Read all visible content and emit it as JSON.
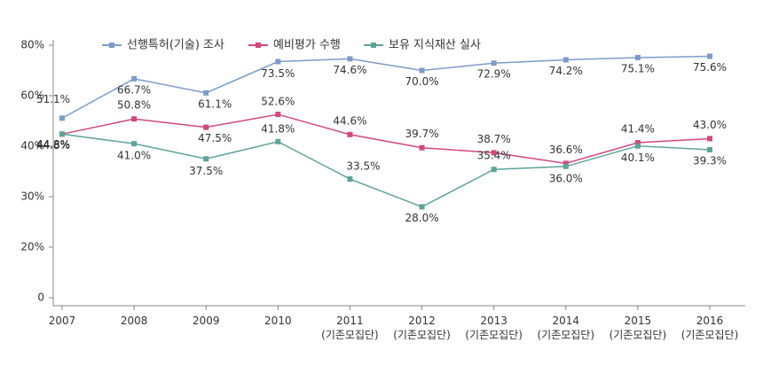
{
  "chart_data": {
    "type": "line",
    "categories": [
      "2007",
      "2008",
      "2009",
      "2010",
      "2011\n(기존모집단)",
      "2012\n(기존모집단)",
      "2013\n(기존모집단)",
      "2014\n(기존모집단)",
      "2015\n(기존모집단)",
      "2016\n(기존모집단)"
    ],
    "series": [
      {
        "name": "선행특허(기술) 조사",
        "color": "#7d9bc9",
        "values": [
          51.1,
          66.7,
          61.1,
          73.5,
          74.6,
          70.0,
          72.9,
          74.2,
          75.1,
          75.6
        ],
        "value_labels": [
          "51.1%",
          "66.7%",
          "61.1%",
          "73.5%",
          "74.6%",
          "70.0%",
          "72.9%",
          "74.2%",
          "75.1%",
          "75.6%"
        ]
      },
      {
        "name": "예비평가 수행",
        "color": "#d1477f",
        "values": [
          44.8,
          50.8,
          47.5,
          52.6,
          44.6,
          39.7,
          38.7,
          36.6,
          41.4,
          43.0
        ],
        "value_labels": [
          "44.8%",
          "50.8%",
          "47.5%",
          "52.6%",
          "44.6%",
          "39.7%",
          "38.7%",
          "36.6%",
          "41.4%",
          "43.0%"
        ]
      },
      {
        "name": "보유 지식재산 실사",
        "color": "#5ea39a",
        "values": [
          44.8,
          41.0,
          37.5,
          41.8,
          33.5,
          28.0,
          35.4,
          36.0,
          40.1,
          39.3
        ],
        "value_labels": [
          "44.8%",
          "41.0%",
          "37.5%",
          "41.8%",
          "33.5%",
          "28.0%",
          "35.4%",
          "36.0%",
          "40.1%",
          "39.3%"
        ]
      }
    ],
    "ylim": [
      0,
      80
    ],
    "yticks": [
      0,
      {
        "value": 20,
        "label": "20%"
      },
      {
        "value": 30,
        "label": "30%"
      },
      {
        "value": 40,
        "label": "40%"
      },
      {
        "value": 60,
        "label": "60%"
      },
      {
        "value": 80,
        "label": "80%"
      }
    ],
    "legend": "top"
  }
}
